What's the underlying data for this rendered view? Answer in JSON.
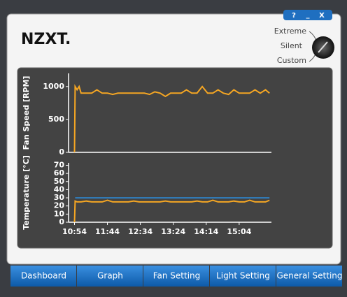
{
  "window_buttons": [
    "?",
    "_",
    "X"
  ],
  "brand": "NZXT.",
  "modes": [
    "Extreme",
    "Silent",
    "Custom"
  ],
  "tabs": [
    "Dashboard",
    "Graph",
    "Fan Setting",
    "Light Setting",
    "General Setting"
  ],
  "chart_data": [
    {
      "type": "line",
      "ylabel": "Fan Speed [RPM]",
      "x": [
        654,
        655,
        658,
        661,
        664,
        672,
        680,
        688,
        696,
        704,
        712,
        720,
        728,
        736,
        744,
        752,
        760,
        768,
        776,
        784,
        792,
        800,
        808,
        816,
        824,
        832,
        840,
        848,
        856,
        864,
        872,
        880,
        888,
        896,
        904,
        912,
        920,
        928,
        936,
        944,
        950
      ],
      "series": [
        {
          "color": "#f5a623",
          "values": [
            0,
            1000,
            950,
            1000,
            900,
            900,
            900,
            950,
            900,
            900,
            880,
            900,
            900,
            900,
            900,
            900,
            900,
            880,
            920,
            900,
            850,
            900,
            900,
            900,
            950,
            900,
            900,
            1000,
            900,
            900,
            950,
            900,
            880,
            950,
            900,
            900,
            900,
            950,
            900,
            950,
            900
          ]
        }
      ],
      "ylim": [
        0,
        1200
      ],
      "yticks": [
        0,
        500,
        1000
      ],
      "xlim": [
        645,
        953
      ]
    },
    {
      "type": "line",
      "ylabel": "Temperature [°C]",
      "x": [
        654,
        655,
        658,
        661,
        664,
        672,
        680,
        688,
        696,
        704,
        712,
        720,
        728,
        736,
        744,
        752,
        760,
        768,
        776,
        784,
        792,
        800,
        808,
        816,
        824,
        832,
        840,
        848,
        856,
        864,
        872,
        880,
        888,
        896,
        904,
        912,
        920,
        928,
        936,
        944,
        950
      ],
      "series": [
        {
          "color": "#2f7fc1",
          "values": [
            null,
            30,
            30,
            30,
            30,
            30,
            30,
            30,
            30,
            30,
            30,
            30,
            30,
            30,
            30,
            30,
            30,
            30,
            30,
            30,
            30,
            30,
            30,
            30,
            30,
            30,
            30,
            30,
            30,
            30,
            30,
            30,
            30,
            30,
            30,
            30,
            30,
            30,
            30,
            30,
            30
          ]
        },
        {
          "color": "#f5a623",
          "values": [
            0,
            26,
            25,
            25,
            25,
            26,
            25,
            25,
            25,
            27,
            25,
            25,
            25,
            25,
            26,
            25,
            25,
            25,
            25,
            25,
            26,
            25,
            25,
            25,
            25,
            25,
            26,
            25,
            25,
            27,
            25,
            25,
            25,
            26,
            25,
            25,
            27,
            25,
            25,
            25,
            27
          ]
        }
      ],
      "ylim": [
        0,
        73
      ],
      "yticks": [
        0,
        10,
        20,
        30,
        40,
        50,
        60,
        70
      ],
      "xlim": [
        645,
        953
      ],
      "xticks": [
        {
          "value": 654,
          "label": "10:54"
        },
        {
          "value": 704,
          "label": "11:44"
        },
        {
          "value": 754,
          "label": "12:34"
        },
        {
          "value": 804,
          "label": "13:24"
        },
        {
          "value": 854,
          "label": "14:14"
        },
        {
          "value": 904,
          "label": "15:04"
        }
      ]
    }
  ]
}
